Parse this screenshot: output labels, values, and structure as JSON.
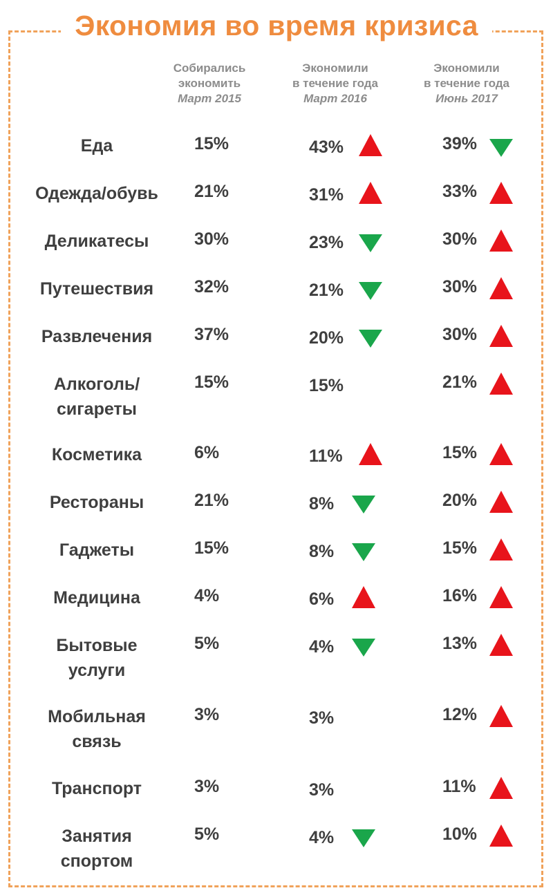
{
  "chart_data": {
    "type": "table",
    "title": "Экономия во время кризиса",
    "columns": [
      {
        "line1": "Собирались",
        "line2": "экономить",
        "period": "Март 2015"
      },
      {
        "line1": "Экономили",
        "line2": "в течение года",
        "period": "Март 2016"
      },
      {
        "line1": "Экономили",
        "line2": "в течение года",
        "period": "Июнь 2017"
      }
    ],
    "rows": [
      {
        "label": [
          "Еда"
        ],
        "values": [
          "15%",
          "43%",
          "39%"
        ],
        "trends": [
          null,
          "up",
          "down"
        ]
      },
      {
        "label": [
          "Одежда/обувь"
        ],
        "values": [
          "21%",
          "31%",
          "33%"
        ],
        "trends": [
          null,
          "up",
          "up"
        ]
      },
      {
        "label": [
          "Деликатесы"
        ],
        "values": [
          "30%",
          "23%",
          "30%"
        ],
        "trends": [
          null,
          "down",
          "up"
        ]
      },
      {
        "label": [
          "Путешествия"
        ],
        "values": [
          "32%",
          "21%",
          "30%"
        ],
        "trends": [
          null,
          "down",
          "up"
        ]
      },
      {
        "label": [
          "Развлечения"
        ],
        "values": [
          "37%",
          "20%",
          "30%"
        ],
        "trends": [
          null,
          "down",
          "up"
        ]
      },
      {
        "label": [
          "Алкоголь/",
          "сигареты"
        ],
        "values": [
          "15%",
          "15%",
          "21%"
        ],
        "trends": [
          null,
          null,
          "up"
        ]
      },
      {
        "label": [
          "Косметика"
        ],
        "values": [
          "6%",
          "11%",
          "15%"
        ],
        "trends": [
          null,
          "up",
          "up"
        ]
      },
      {
        "label": [
          "Рестораны"
        ],
        "values": [
          "21%",
          "8%",
          "20%"
        ],
        "trends": [
          null,
          "down",
          "up"
        ]
      },
      {
        "label": [
          "Гаджеты"
        ],
        "values": [
          "15%",
          "8%",
          "15%"
        ],
        "trends": [
          null,
          "down",
          "up"
        ]
      },
      {
        "label": [
          "Медицина"
        ],
        "values": [
          "4%",
          "6%",
          "16%"
        ],
        "trends": [
          null,
          "up",
          "up"
        ]
      },
      {
        "label": [
          "Бытовые",
          "услуги"
        ],
        "values": [
          "5%",
          "4%",
          "13%"
        ],
        "trends": [
          null,
          "down",
          "up"
        ]
      },
      {
        "label": [
          "Мобильная",
          "связь"
        ],
        "values": [
          "3%",
          "3%",
          "12%"
        ],
        "trends": [
          null,
          null,
          "up"
        ]
      },
      {
        "label": [
          "Транспорт"
        ],
        "values": [
          "3%",
          "3%",
          "11%"
        ],
        "trends": [
          null,
          null,
          "up"
        ]
      },
      {
        "label": [
          "Занятия",
          "спортом"
        ],
        "values": [
          "5%",
          "4%",
          "10%"
        ],
        "trends": [
          null,
          "down",
          "up"
        ]
      }
    ]
  },
  "colors": {
    "accent": "#ef8c3f",
    "frame": "#f0a25a",
    "up": "#e8141b",
    "down": "#1aa64b",
    "text": "#3f3f3f",
    "header": "#8c8c8c"
  },
  "icons": {
    "up": "triangle-up-icon",
    "down": "triangle-down-icon"
  }
}
